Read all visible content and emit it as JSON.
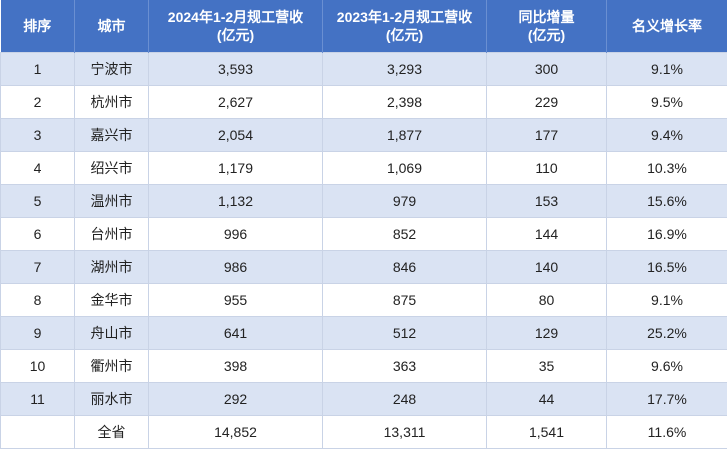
{
  "table": {
    "header": [
      [
        "排序"
      ],
      [
        "城市"
      ],
      [
        "2024年1-2月规工营收",
        "(亿元)"
      ],
      [
        "2023年1-2月规工营收",
        "(亿元)"
      ],
      [
        "同比增量",
        "(亿元)"
      ],
      [
        "名义增长率"
      ]
    ],
    "rows": [
      [
        "1",
        "宁波市",
        "3,593",
        "3,293",
        "300",
        "9.1%"
      ],
      [
        "2",
        "杭州市",
        "2,627",
        "2,398",
        "229",
        "9.5%"
      ],
      [
        "3",
        "嘉兴市",
        "2,054",
        "1,877",
        "177",
        "9.4%"
      ],
      [
        "4",
        "绍兴市",
        "1,179",
        "1,069",
        "110",
        "10.3%"
      ],
      [
        "5",
        "温州市",
        "1,132",
        "979",
        "153",
        "15.6%"
      ],
      [
        "6",
        "台州市",
        "996",
        "852",
        "144",
        "16.9%"
      ],
      [
        "7",
        "湖州市",
        "986",
        "846",
        "140",
        "16.5%"
      ],
      [
        "8",
        "金华市",
        "955",
        "875",
        "80",
        "9.1%"
      ],
      [
        "9",
        "舟山市",
        "641",
        "512",
        "129",
        "25.2%"
      ],
      [
        "10",
        "衢州市",
        "398",
        "363",
        "35",
        "9.6%"
      ],
      [
        "11",
        "丽水市",
        "292",
        "248",
        "44",
        "17.7%"
      ]
    ],
    "total": {
      "label": "全省",
      "values": [
        "14,852",
        "13,311",
        "1,541",
        "11.6%"
      ]
    }
  }
}
